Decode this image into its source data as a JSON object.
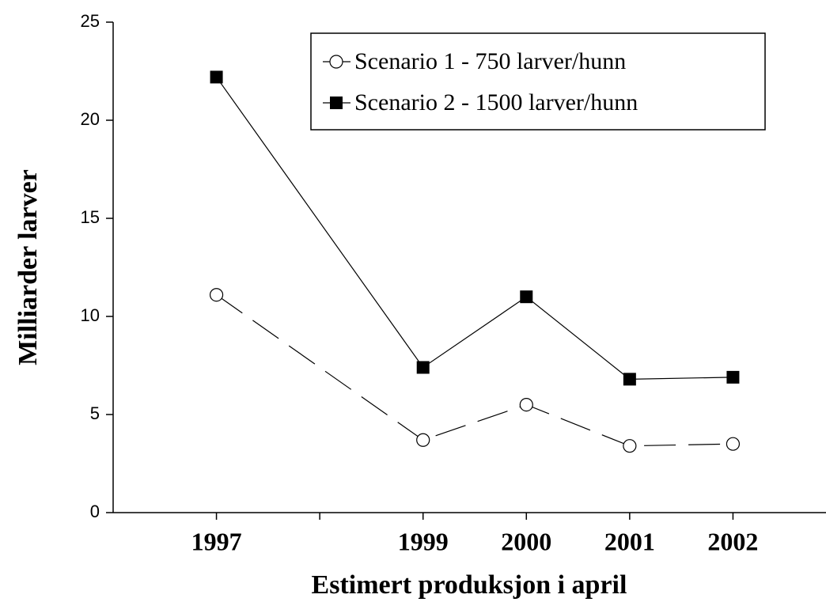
{
  "chart_data": {
    "type": "line",
    "x_label": "Estimert produksjon i april",
    "y_label": "Milliarder larver",
    "x": [
      1997,
      1999,
      2000,
      2001,
      2002
    ],
    "series": [
      {
        "name": "Scenario 1 - 750 larver/hunn",
        "color": "#000000",
        "marker": "open-circle",
        "dash": "dashed",
        "values": [
          11.1,
          3.7,
          5.5,
          3.4,
          3.5
        ]
      },
      {
        "name": "Scenario 2 - 1500 larver/hunn",
        "color": "#000000",
        "marker": "filled-square",
        "dash": "solid",
        "values": [
          22.2,
          7.4,
          11.0,
          6.8,
          6.9
        ]
      }
    ],
    "xlim": [
      1996,
      2003
    ],
    "xticks": [
      1997,
      1999,
      2000,
      2001,
      2002
    ],
    "xminorticks": [
      1998
    ],
    "ylim": [
      0,
      25
    ],
    "yticks": [
      0,
      5,
      10,
      15,
      20,
      25
    ],
    "grid": false,
    "legend": "top-right"
  }
}
